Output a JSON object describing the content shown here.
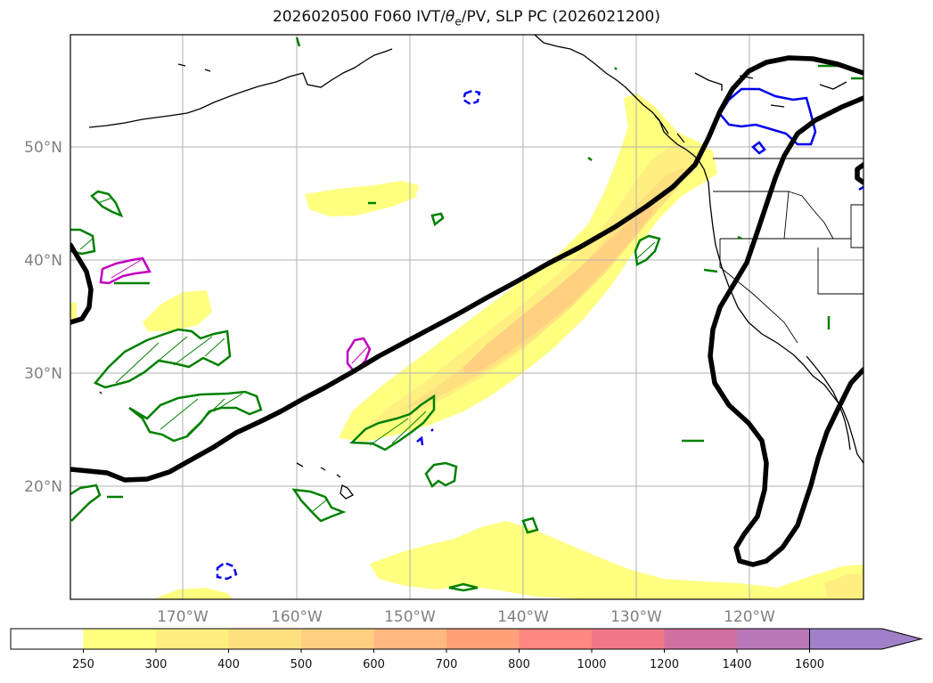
{
  "title": {
    "prefix": "2026020500 F060 IVT/",
    "theta": "θ",
    "theta_sub": "e",
    "suffix": "/PV, SLP PC (2026021200)"
  },
  "map": {
    "lat_labels": [
      "50°N",
      "40°N",
      "30°N",
      "20°N"
    ],
    "lon_labels": [
      "170°W",
      "160°W",
      "150°W",
      "140°W",
      "130°W",
      "120°W"
    ]
  },
  "colorbar": {
    "ticks": [
      "250",
      "300",
      "400",
      "500",
      "600",
      "700",
      "800",
      "1000",
      "1200",
      "1400",
      "1600"
    ],
    "colors": [
      "#ffffff",
      "#ffff80",
      "#ffef80",
      "#ffe080",
      "#ffd080",
      "#ffb880",
      "#ffa078",
      "#ff8880",
      "#f07888",
      "#d070a0",
      "#b878b8",
      "#a080c8"
    ],
    "extend": "max"
  }
}
